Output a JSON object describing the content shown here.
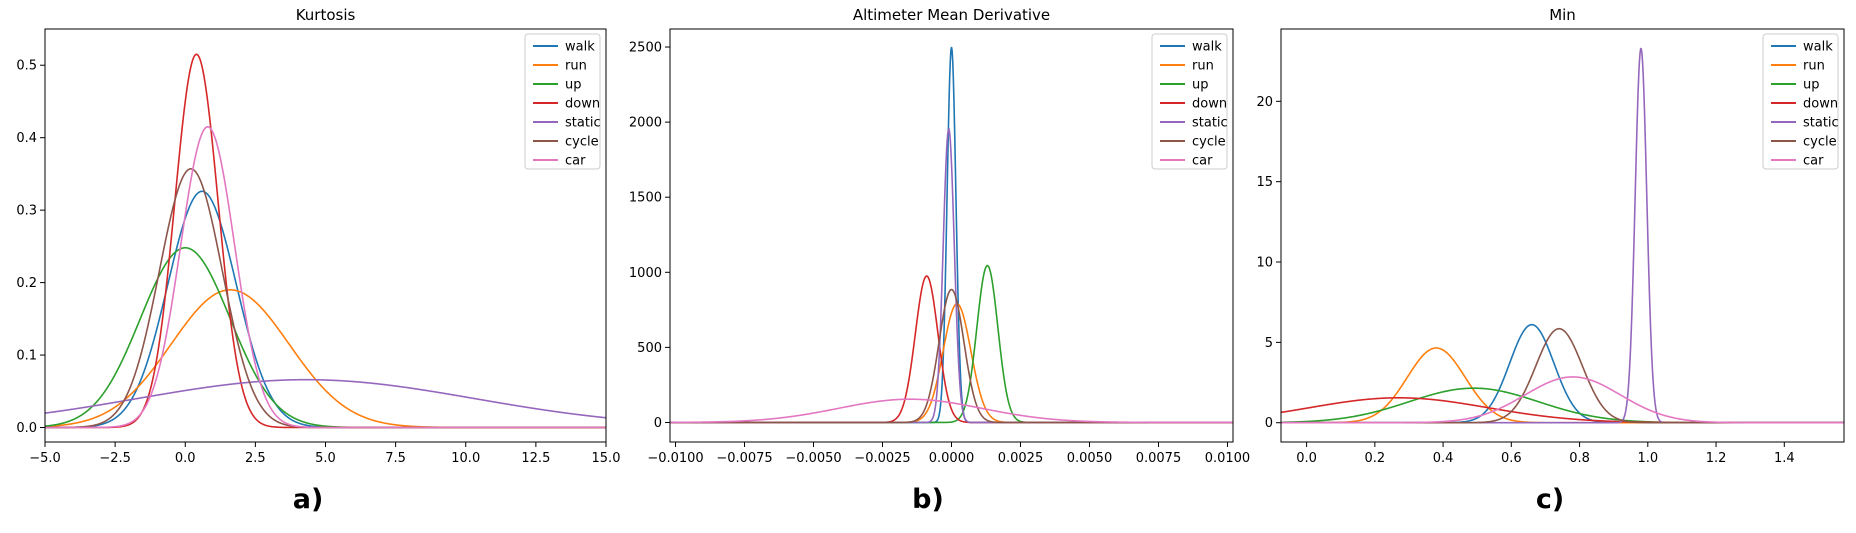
{
  "colors": {
    "walk": "#1f77b4",
    "run": "#ff7f0e",
    "up": "#2ca02c",
    "down": "#d62728",
    "static": "#9467bd",
    "cycle": "#8c564b",
    "car": "#e377c2"
  },
  "chart_data": [
    {
      "type": "line",
      "kind": "gaussian-density",
      "title": "Kurtosis",
      "subfig_label": "a)",
      "xlabel": "",
      "ylabel": "",
      "xlim": [
        -5,
        15
      ],
      "ylim": [
        -0.02,
        0.55
      ],
      "xticks": [
        -5.0,
        -2.5,
        0.0,
        2.5,
        5.0,
        7.5,
        10.0,
        12.5,
        15.0
      ],
      "xtick_labels": [
        "−5.0",
        "−2.5",
        "0.0",
        "2.5",
        "5.0",
        "7.5",
        "10.0",
        "12.5",
        "15.0"
      ],
      "yticks": [
        0.0,
        0.1,
        0.2,
        0.3,
        0.4,
        0.5
      ],
      "ytick_labels": [
        "0.0",
        "0.1",
        "0.2",
        "0.3",
        "0.4",
        "0.5"
      ],
      "legend_position": "top-right",
      "series": [
        {
          "name": "walk",
          "mean": 0.6,
          "std": 1.22,
          "peak": 0.326
        },
        {
          "name": "run",
          "mean": 1.6,
          "std": 2.1,
          "peak": 0.19
        },
        {
          "name": "up",
          "mean": 0.0,
          "std": 1.6,
          "peak": 0.248
        },
        {
          "name": "down",
          "mean": 0.4,
          "std": 0.77,
          "peak": 0.515
        },
        {
          "name": "static",
          "mean": 4.3,
          "std": 6.0,
          "peak": 0.066
        },
        {
          "name": "cycle",
          "mean": 0.2,
          "std": 1.12,
          "peak": 0.357
        },
        {
          "name": "car",
          "mean": 0.8,
          "std": 0.96,
          "peak": 0.415
        }
      ]
    },
    {
      "type": "line",
      "kind": "gaussian-density",
      "title": "Altimeter Mean Derivative",
      "subfig_label": "b)",
      "xlabel": "",
      "ylabel": "",
      "xlim": [
        -0.0102,
        0.0102
      ],
      "ylim": [
        -130,
        2620
      ],
      "xticks": [
        -0.01,
        -0.0075,
        -0.005,
        -0.0025,
        0.0,
        0.0025,
        0.005,
        0.0075,
        0.01
      ],
      "xtick_labels": [
        "−0.0100",
        "−0.0075",
        "−0.0050",
        "−0.0025",
        "0.0000",
        "0.0025",
        "0.0050",
        "0.0075",
        "0.0100"
      ],
      "yticks": [
        0,
        500,
        1000,
        1500,
        2000,
        2500
      ],
      "ytick_labels": [
        "0",
        "500",
        "1000",
        "1500",
        "2000",
        "2500"
      ],
      "legend_position": "top-right",
      "series": [
        {
          "name": "walk",
          "mean": 0.0,
          "std": 0.00016,
          "peak": 2500
        },
        {
          "name": "run",
          "mean": 0.0002,
          "std": 0.0005,
          "peak": 790
        },
        {
          "name": "up",
          "mean": 0.0013,
          "std": 0.00038,
          "peak": 1045
        },
        {
          "name": "down",
          "mean": -0.0009,
          "std": 0.00041,
          "peak": 975
        },
        {
          "name": "static",
          "mean": -0.0001,
          "std": 0.0002,
          "peak": 1955
        },
        {
          "name": "cycle",
          "mean": 0.0,
          "std": 0.00045,
          "peak": 885
        },
        {
          "name": "car",
          "mean": -0.0015,
          "std": 0.0026,
          "peak": 155
        }
      ]
    },
    {
      "type": "line",
      "kind": "gaussian-density",
      "title": "Min",
      "subfig_label": "c)",
      "xlabel": "",
      "ylabel": "",
      "xlim": [
        -0.075,
        1.575
      ],
      "ylim": [
        -1.2,
        24.5
      ],
      "xticks": [
        0.0,
        0.2,
        0.4,
        0.6,
        0.8,
        1.0,
        1.2,
        1.4
      ],
      "xtick_labels": [
        "0.0",
        "0.2",
        "0.4",
        "0.6",
        "0.8",
        "1.0",
        "1.2",
        "1.4"
      ],
      "yticks": [
        0,
        5,
        10,
        15,
        20
      ],
      "ytick_labels": [
        "0",
        "5",
        "10",
        "15",
        "20"
      ],
      "legend_position": "top-right",
      "series": [
        {
          "name": "walk",
          "mean": 0.66,
          "std": 0.065,
          "peak": 6.1
        },
        {
          "name": "run",
          "mean": 0.38,
          "std": 0.085,
          "peak": 4.65
        },
        {
          "name": "up",
          "mean": 0.49,
          "std": 0.19,
          "peak": 2.15
        },
        {
          "name": "down",
          "mean": 0.27,
          "std": 0.26,
          "peak": 1.55
        },
        {
          "name": "static",
          "mean": 0.98,
          "std": 0.017,
          "peak": 23.3
        },
        {
          "name": "cycle",
          "mean": 0.74,
          "std": 0.068,
          "peak": 5.85
        },
        {
          "name": "car",
          "mean": 0.78,
          "std": 0.14,
          "peak": 2.85
        }
      ]
    }
  ]
}
